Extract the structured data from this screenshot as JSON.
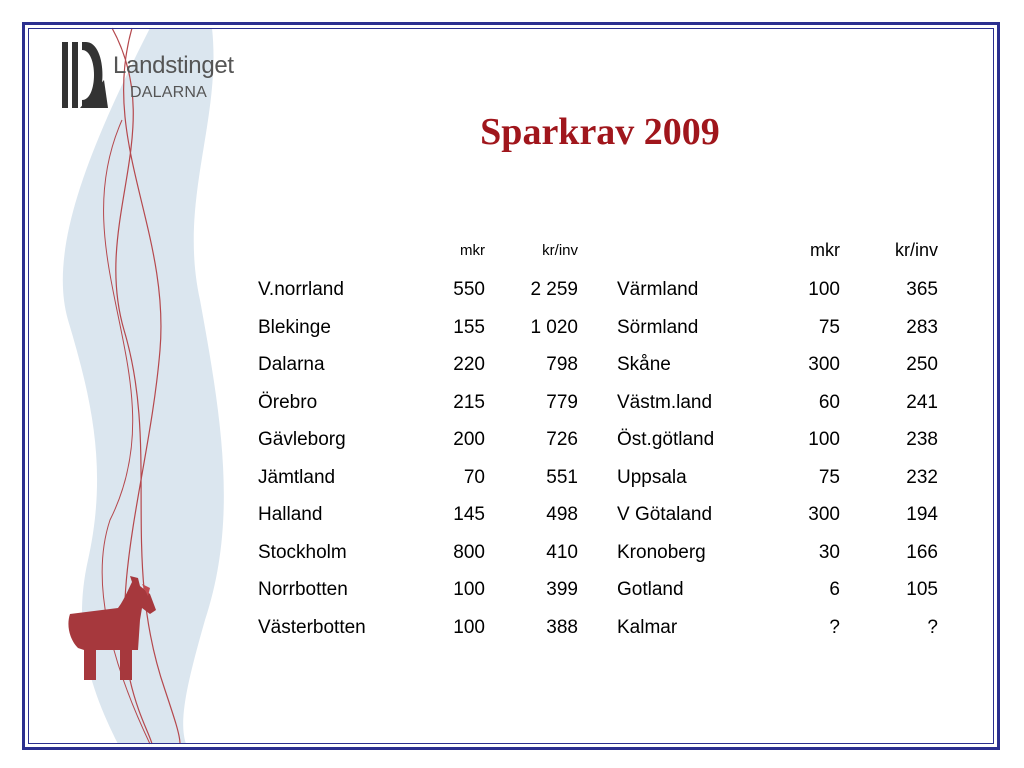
{
  "logo": {
    "name": "Landstinget",
    "sub": "DALARNA"
  },
  "title": "Sparkrav 2009",
  "headers": {
    "left_mkr": "mkr",
    "left_krinv": "kr/inv",
    "right_mkr": "mkr",
    "right_krinv": "kr/inv"
  },
  "left_rows": [
    {
      "region": "V.norrland",
      "mkr": "550",
      "krinv": "2 259"
    },
    {
      "region": "Blekinge",
      "mkr": "155",
      "krinv": "1 020"
    },
    {
      "region": "Dalarna",
      "mkr": "220",
      "krinv": "798"
    },
    {
      "region": "Örebro",
      "mkr": "215",
      "krinv": "779"
    },
    {
      "region": "Gävleborg",
      "mkr": "200",
      "krinv": "726"
    },
    {
      "region": "Jämtland",
      "mkr": "70",
      "krinv": "551"
    },
    {
      "region": "Halland",
      "mkr": "145",
      "krinv": "498"
    },
    {
      "region": "Stockholm",
      "mkr": "800",
      "krinv": "410"
    },
    {
      "region": "Norrbotten",
      "mkr": "100",
      "krinv": "399"
    },
    {
      "region": "Västerbotten",
      "mkr": "100",
      "krinv": "388"
    }
  ],
  "right_rows": [
    {
      "region": "Värmland",
      "mkr": "100",
      "krinv": "365"
    },
    {
      "region": "Sörmland",
      "mkr": "75",
      "krinv": "283"
    },
    {
      "region": "Skåne",
      "mkr": "300",
      "krinv": "250"
    },
    {
      "region": "Västm.land",
      "mkr": "60",
      "krinv": "241"
    },
    {
      "region": "Öst.götland",
      "mkr": "100",
      "krinv": "238"
    },
    {
      "region": "Uppsala",
      "mkr": "75",
      "krinv": "232"
    },
    {
      "region": "V Götaland",
      "mkr": "300",
      "krinv": "194"
    },
    {
      "region": "Kronoberg",
      "mkr": "30",
      "krinv": "166"
    },
    {
      "region": "Gotland",
      "mkr": "6",
      "krinv": "105"
    },
    {
      "region": "Kalmar",
      "mkr": "?",
      "krinv": "?"
    }
  ],
  "colors": {
    "title": "#a0161c",
    "frame": "#2b2f8f",
    "ribbon": "#dbe6ef",
    "horse": "#a6383d",
    "curve": "#b5484d"
  }
}
